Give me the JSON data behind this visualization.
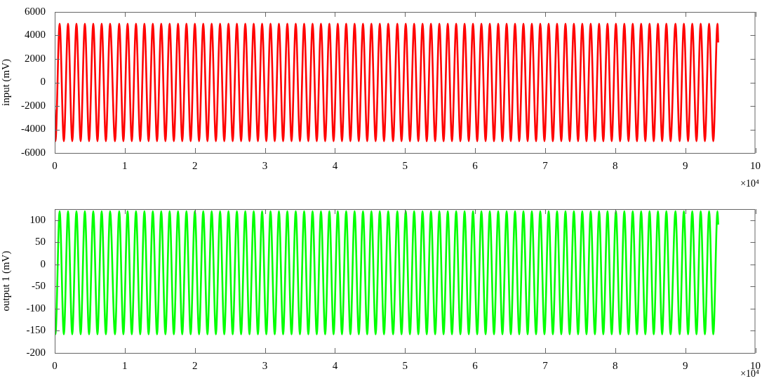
{
  "chart_data": [
    {
      "type": "line",
      "ylabel": "input (mV)",
      "annotations": [
        "×10⁴"
      ],
      "xlim": [
        0,
        10
      ],
      "xticks": [
        0,
        1,
        2,
        3,
        4,
        5,
        6,
        7,
        8,
        9,
        10
      ],
      "ylim": [
        -6000,
        6000
      ],
      "yticks": [
        -6000,
        -4000,
        -2000,
        0,
        2000,
        4000,
        6000
      ],
      "x": [
        0,
        0.01,
        0.07,
        0.13,
        0.19,
        0.25,
        0.31,
        0.37,
        0.43,
        0.49,
        0.55,
        0.61,
        0.67,
        0.73,
        0.79,
        0.86,
        0.92,
        0.98,
        1.04,
        1.1,
        1.16,
        1.22,
        1.28,
        1.34,
        1.4,
        1.46,
        1.52,
        1.58,
        1.64,
        1.7,
        1.76,
        1.82,
        1.88,
        1.94,
        2,
        2.06,
        2.12,
        2.18,
        2.24,
        2.3,
        2.36,
        2.42,
        2.48,
        2.54,
        2.6,
        2.66,
        2.72,
        2.78,
        2.84,
        2.9,
        2.96,
        3.02,
        3.08,
        3.14,
        3.2,
        3.26,
        3.32,
        3.38,
        3.44,
        3.5,
        3.56,
        3.62,
        3.68,
        3.74,
        3.8,
        3.86,
        3.92,
        3.98,
        4.04,
        4.1,
        4.16,
        4.22,
        4.28,
        4.34,
        4.4,
        4.46,
        4.52,
        4.58,
        4.64,
        4.7,
        4.76,
        4.83,
        4.89,
        4.95,
        5.01,
        5.07,
        5.13,
        5.19,
        5.25,
        5.31,
        5.37,
        5.43,
        5.49,
        5.55,
        5.61,
        5.67,
        5.73,
        5.79,
        5.85,
        5.91,
        5.97,
        6.03,
        6.09,
        6.15,
        6.21,
        6.27,
        6.33,
        6.39,
        6.45,
        6.51,
        6.57,
        6.63,
        6.69,
        6.75,
        6.81,
        6.87,
        6.93,
        6.99,
        7.05,
        7.11,
        7.17,
        7.23,
        7.29,
        7.35,
        7.41,
        7.47,
        7.53,
        7.59,
        7.65,
        7.71,
        7.77,
        7.83,
        7.89,
        7.95,
        8.01,
        8.07,
        8.13,
        8.19,
        8.25,
        8.31,
        8.37,
        8.43,
        8.49,
        8.55,
        8.61,
        8.67,
        8.73,
        8.79,
        8.86,
        8.92,
        8.98,
        9.04,
        9.1,
        9.16,
        9.22,
        9.28,
        9.34,
        9.4,
        9.46,
        9.47
      ],
      "series": [
        {
          "color": "#ff0000",
          "values": [
            -2300,
            -5000,
            5000,
            -5000,
            5000,
            -5000,
            5000,
            -5000,
            5000,
            -5000,
            5000,
            -5000,
            5000,
            -5000,
            5000,
            -5000,
            5000,
            -5000,
            5000,
            -5000,
            5000,
            -5000,
            5000,
            -5000,
            5000,
            -5000,
            5000,
            -5000,
            5000,
            -5000,
            5000,
            -5000,
            5000,
            -5000,
            5000,
            -5000,
            5000,
            -5000,
            5000,
            -5000,
            5000,
            -5000,
            5000,
            -5000,
            5000,
            -5000,
            5000,
            -5000,
            5000,
            -5000,
            5000,
            -5000,
            5000,
            -5000,
            5000,
            -5000,
            5000,
            -5000,
            5000,
            -5000,
            5000,
            -5000,
            5000,
            -5000,
            5000,
            -5000,
            5000,
            -5000,
            5000,
            -5000,
            5000,
            -5000,
            5000,
            -5000,
            5000,
            -5000,
            5000,
            -5000,
            5000,
            -5000,
            5000,
            -5000,
            5000,
            -5000,
            5000,
            -5000,
            5000,
            -5000,
            5000,
            -5000,
            5000,
            -5000,
            5000,
            -5000,
            5000,
            -5000,
            5000,
            -5000,
            5000,
            -5000,
            5000,
            -5000,
            5000,
            -5000,
            5000,
            -5000,
            5000,
            -5000,
            5000,
            -5000,
            5000,
            -5000,
            5000,
            -5000,
            5000,
            -5000,
            5000,
            -5000,
            5000,
            -5000,
            5000,
            -5000,
            5000,
            -5000,
            5000,
            -5000,
            5000,
            -5000,
            5000,
            -5000,
            5000,
            -5000,
            5000,
            -5000,
            5000,
            -5000,
            5000,
            -5000,
            5000,
            -5000,
            5000,
            -5000,
            5000,
            -5000,
            5000,
            -5000,
            5000,
            -5000,
            5000,
            -5000,
            5000,
            -5000,
            5000,
            -5000,
            5000,
            -5000,
            5000,
            -5000,
            5000,
            3400
          ]
        }
      ]
    },
    {
      "type": "line",
      "ylabel": "output 1 (mV)",
      "annotations": [
        "×10⁴"
      ],
      "xlim": [
        0,
        10
      ],
      "xticks": [
        0,
        1,
        2,
        3,
        4,
        5,
        6,
        7,
        8,
        9,
        10
      ],
      "ylim": [
        -200,
        125
      ],
      "yticks": [
        -200,
        -150,
        -100,
        -50,
        0,
        50,
        100
      ],
      "x": [
        0,
        0.01,
        0.07,
        0.13,
        0.19,
        0.25,
        0.31,
        0.37,
        0.43,
        0.49,
        0.55,
        0.61,
        0.67,
        0.73,
        0.79,
        0.86,
        0.92,
        0.98,
        1.04,
        1.1,
        1.16,
        1.22,
        1.28,
        1.34,
        1.4,
        1.46,
        1.52,
        1.58,
        1.64,
        1.7,
        1.76,
        1.82,
        1.88,
        1.94,
        2,
        2.06,
        2.12,
        2.18,
        2.24,
        2.3,
        2.36,
        2.42,
        2.48,
        2.54,
        2.6,
        2.66,
        2.72,
        2.78,
        2.84,
        2.9,
        2.96,
        3.02,
        3.08,
        3.14,
        3.2,
        3.26,
        3.32,
        3.38,
        3.44,
        3.5,
        3.56,
        3.62,
        3.68,
        3.74,
        3.8,
        3.86,
        3.92,
        3.98,
        4.04,
        4.1,
        4.16,
        4.22,
        4.28,
        4.34,
        4.4,
        4.46,
        4.52,
        4.58,
        4.64,
        4.7,
        4.76,
        4.83,
        4.89,
        4.95,
        5.01,
        5.07,
        5.13,
        5.19,
        5.25,
        5.31,
        5.37,
        5.43,
        5.49,
        5.55,
        5.61,
        5.67,
        5.73,
        5.79,
        5.85,
        5.91,
        5.97,
        6.03,
        6.09,
        6.15,
        6.21,
        6.27,
        6.33,
        6.39,
        6.45,
        6.51,
        6.57,
        6.63,
        6.69,
        6.75,
        6.81,
        6.87,
        6.93,
        6.99,
        7.05,
        7.11,
        7.17,
        7.23,
        7.29,
        7.35,
        7.41,
        7.47,
        7.53,
        7.59,
        7.65,
        7.71,
        7.77,
        7.83,
        7.89,
        7.95,
        8.01,
        8.07,
        8.13,
        8.19,
        8.25,
        8.31,
        8.37,
        8.43,
        8.49,
        8.55,
        8.61,
        8.67,
        8.73,
        8.79,
        8.86,
        8.92,
        8.98,
        9.04,
        9.1,
        9.16,
        9.22,
        9.28,
        9.34,
        9.4,
        9.46,
        9.47
      ],
      "series": [
        {
          "color": "#00ff00",
          "values": [
            -130,
            -158,
            120,
            -158,
            120,
            -158,
            120,
            -158,
            120,
            -158,
            120,
            -158,
            120,
            -158,
            120,
            -158,
            120,
            -158,
            120,
            -158,
            120,
            -158,
            120,
            -158,
            120,
            -158,
            120,
            -158,
            120,
            -158,
            120,
            -158,
            120,
            -158,
            120,
            -158,
            120,
            -158,
            120,
            -158,
            120,
            -158,
            120,
            -158,
            120,
            -158,
            120,
            -158,
            120,
            -158,
            120,
            -158,
            120,
            -158,
            120,
            -158,
            120,
            -158,
            120,
            -158,
            120,
            -158,
            120,
            -158,
            120,
            -158,
            120,
            -158,
            120,
            -158,
            120,
            -158,
            120,
            -158,
            120,
            -158,
            120,
            -158,
            120,
            -158,
            120,
            -158,
            120,
            -158,
            120,
            -158,
            120,
            -158,
            120,
            -158,
            120,
            -158,
            120,
            -158,
            120,
            -158,
            120,
            -158,
            120,
            -158,
            120,
            -158,
            120,
            -158,
            120,
            -158,
            120,
            -158,
            120,
            -158,
            120,
            -158,
            120,
            -158,
            120,
            -158,
            120,
            -158,
            120,
            -158,
            120,
            -158,
            120,
            -158,
            120,
            -158,
            120,
            -158,
            120,
            -158,
            120,
            -158,
            120,
            -158,
            120,
            -158,
            120,
            -158,
            120,
            -158,
            120,
            -158,
            120,
            -158,
            120,
            -158,
            120,
            -158,
            120,
            -158,
            120,
            -158,
            120,
            -158,
            120,
            -158,
            120,
            -158,
            120,
            90
          ]
        }
      ]
    }
  ]
}
